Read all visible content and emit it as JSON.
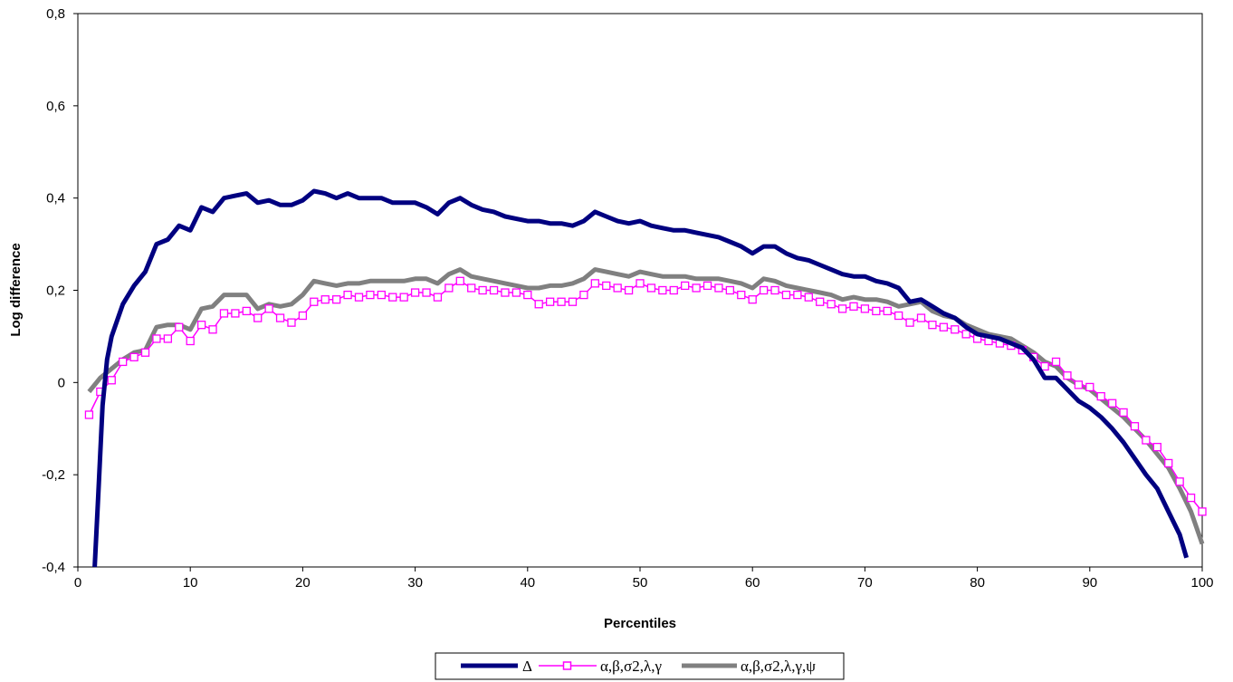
{
  "chart_data": {
    "type": "line",
    "xlabel": "Percentiles",
    "ylabel": "Log difference",
    "xlim": [
      0,
      100
    ],
    "ylim": [
      -0.4,
      0.8
    ],
    "x_ticks": [
      0,
      10,
      20,
      30,
      40,
      50,
      60,
      70,
      80,
      90,
      100
    ],
    "x_tick_labels": [
      "0",
      "10",
      "20",
      "30",
      "40",
      "50",
      "60",
      "70",
      "80",
      "90",
      "100"
    ],
    "y_ticks": [
      -0.4,
      -0.2,
      0,
      0.2,
      0.4,
      0.6,
      0.8
    ],
    "y_tick_labels": [
      "-0,4",
      "-0,2",
      "0",
      "0,2",
      "0,4",
      "0,6",
      "0,8"
    ],
    "grid": false,
    "legend_position": "bottom",
    "series": [
      {
        "name": "Δ",
        "color": "#000080",
        "marker": "none",
        "x": [
          1.5,
          1.8,
          2.2,
          2.6,
          3,
          4,
          5,
          6,
          7,
          8,
          9,
          10,
          11,
          12,
          13,
          14,
          15,
          16,
          17,
          18,
          19,
          20,
          21,
          22,
          23,
          24,
          25,
          26,
          27,
          28,
          29,
          30,
          31,
          32,
          33,
          34,
          35,
          36,
          37,
          38,
          39,
          40,
          41,
          42,
          43,
          44,
          45,
          46,
          47,
          48,
          49,
          50,
          51,
          52,
          53,
          54,
          55,
          56,
          57,
          58,
          59,
          60,
          61,
          62,
          63,
          64,
          65,
          66,
          67,
          68,
          69,
          70,
          71,
          72,
          73,
          74,
          75,
          76,
          77,
          78,
          79,
          80,
          81,
          82,
          83,
          84,
          85,
          86,
          87,
          88,
          89,
          90,
          91,
          92,
          93,
          94,
          95,
          96,
          97,
          98,
          98.6
        ],
        "y": [
          -0.4,
          -0.25,
          -0.05,
          0.05,
          0.1,
          0.17,
          0.21,
          0.24,
          0.3,
          0.31,
          0.34,
          0.33,
          0.38,
          0.37,
          0.4,
          0.405,
          0.41,
          0.39,
          0.395,
          0.385,
          0.385,
          0.395,
          0.415,
          0.41,
          0.4,
          0.41,
          0.4,
          0.4,
          0.4,
          0.39,
          0.39,
          0.39,
          0.38,
          0.365,
          0.39,
          0.4,
          0.385,
          0.375,
          0.37,
          0.36,
          0.355,
          0.35,
          0.35,
          0.345,
          0.345,
          0.34,
          0.35,
          0.37,
          0.36,
          0.35,
          0.345,
          0.35,
          0.34,
          0.335,
          0.33,
          0.33,
          0.325,
          0.32,
          0.315,
          0.305,
          0.295,
          0.28,
          0.295,
          0.295,
          0.28,
          0.27,
          0.265,
          0.255,
          0.245,
          0.235,
          0.23,
          0.23,
          0.22,
          0.215,
          0.205,
          0.175,
          0.18,
          0.165,
          0.15,
          0.14,
          0.12,
          0.105,
          0.1,
          0.095,
          0.085,
          0.075,
          0.05,
          0.01,
          0.01,
          -0.015,
          -0.04,
          -0.055,
          -0.075,
          -0.1,
          -0.13,
          -0.165,
          -0.2,
          -0.23,
          -0.28,
          -0.33,
          -0.38
        ]
      },
      {
        "name": "α,β,σ2,λ,γ",
        "color": "#ff00ff",
        "marker": "square",
        "x": [
          1,
          2,
          3,
          4,
          5,
          6,
          7,
          8,
          9,
          10,
          11,
          12,
          13,
          14,
          15,
          16,
          17,
          18,
          19,
          20,
          21,
          22,
          23,
          24,
          25,
          26,
          27,
          28,
          29,
          30,
          31,
          32,
          33,
          34,
          35,
          36,
          37,
          38,
          39,
          40,
          41,
          42,
          43,
          44,
          45,
          46,
          47,
          48,
          49,
          50,
          51,
          52,
          53,
          54,
          55,
          56,
          57,
          58,
          59,
          60,
          61,
          62,
          63,
          64,
          65,
          66,
          67,
          68,
          69,
          70,
          71,
          72,
          73,
          74,
          75,
          76,
          77,
          78,
          79,
          80,
          81,
          82,
          83,
          84,
          85,
          86,
          87,
          88,
          89,
          90,
          91,
          92,
          93,
          94,
          95,
          96,
          97,
          98,
          99,
          100
        ],
        "y": [
          -0.07,
          -0.02,
          0.005,
          0.045,
          0.055,
          0.065,
          0.095,
          0.095,
          0.12,
          0.09,
          0.125,
          0.115,
          0.15,
          0.15,
          0.155,
          0.14,
          0.16,
          0.14,
          0.13,
          0.145,
          0.175,
          0.18,
          0.18,
          0.19,
          0.185,
          0.19,
          0.19,
          0.185,
          0.185,
          0.195,
          0.195,
          0.185,
          0.205,
          0.22,
          0.205,
          0.2,
          0.2,
          0.195,
          0.195,
          0.19,
          0.17,
          0.175,
          0.175,
          0.175,
          0.19,
          0.215,
          0.21,
          0.205,
          0.2,
          0.215,
          0.205,
          0.2,
          0.2,
          0.21,
          0.205,
          0.21,
          0.205,
          0.2,
          0.19,
          0.18,
          0.2,
          0.2,
          0.19,
          0.19,
          0.185,
          0.175,
          0.17,
          0.16,
          0.165,
          0.16,
          0.155,
          0.155,
          0.145,
          0.13,
          0.14,
          0.125,
          0.12,
          0.115,
          0.105,
          0.095,
          0.09,
          0.085,
          0.08,
          0.07,
          0.055,
          0.035,
          0.045,
          0.015,
          -0.005,
          -0.01,
          -0.03,
          -0.045,
          -0.065,
          -0.095,
          -0.125,
          -0.14,
          -0.175,
          -0.215,
          -0.25,
          -0.28
        ]
      },
      {
        "name": "α,β,σ2,λ,γ,ψ",
        "color": "#808080",
        "marker": "none",
        "x": [
          1,
          2,
          3,
          4,
          5,
          6,
          7,
          8,
          9,
          10,
          11,
          12,
          13,
          14,
          15,
          16,
          17,
          18,
          19,
          20,
          21,
          22,
          23,
          24,
          25,
          26,
          27,
          28,
          29,
          30,
          31,
          32,
          33,
          34,
          35,
          36,
          37,
          38,
          39,
          40,
          41,
          42,
          43,
          44,
          45,
          46,
          47,
          48,
          49,
          50,
          51,
          52,
          53,
          54,
          55,
          56,
          57,
          58,
          59,
          60,
          61,
          62,
          63,
          64,
          65,
          66,
          67,
          68,
          69,
          70,
          71,
          72,
          73,
          74,
          75,
          76,
          77,
          78,
          79,
          80,
          81,
          82,
          83,
          84,
          85,
          86,
          87,
          88,
          89,
          90,
          91,
          92,
          93,
          94,
          95,
          96,
          97,
          98,
          99,
          100
        ],
        "y": [
          -0.02,
          0.01,
          0.03,
          0.05,
          0.065,
          0.07,
          0.12,
          0.125,
          0.125,
          0.115,
          0.16,
          0.165,
          0.19,
          0.19,
          0.19,
          0.16,
          0.17,
          0.165,
          0.17,
          0.19,
          0.22,
          0.215,
          0.21,
          0.215,
          0.215,
          0.22,
          0.22,
          0.22,
          0.22,
          0.225,
          0.225,
          0.215,
          0.235,
          0.245,
          0.23,
          0.225,
          0.22,
          0.215,
          0.21,
          0.205,
          0.205,
          0.21,
          0.21,
          0.215,
          0.225,
          0.245,
          0.24,
          0.235,
          0.23,
          0.24,
          0.235,
          0.23,
          0.23,
          0.23,
          0.225,
          0.225,
          0.225,
          0.22,
          0.215,
          0.205,
          0.225,
          0.22,
          0.21,
          0.205,
          0.2,
          0.195,
          0.19,
          0.18,
          0.185,
          0.18,
          0.18,
          0.175,
          0.165,
          0.17,
          0.175,
          0.155,
          0.145,
          0.14,
          0.125,
          0.115,
          0.105,
          0.1,
          0.095,
          0.08,
          0.065,
          0.045,
          0.035,
          0.01,
          -0.005,
          -0.015,
          -0.035,
          -0.055,
          -0.075,
          -0.1,
          -0.125,
          -0.155,
          -0.185,
          -0.23,
          -0.28,
          -0.35
        ]
      }
    ]
  }
}
